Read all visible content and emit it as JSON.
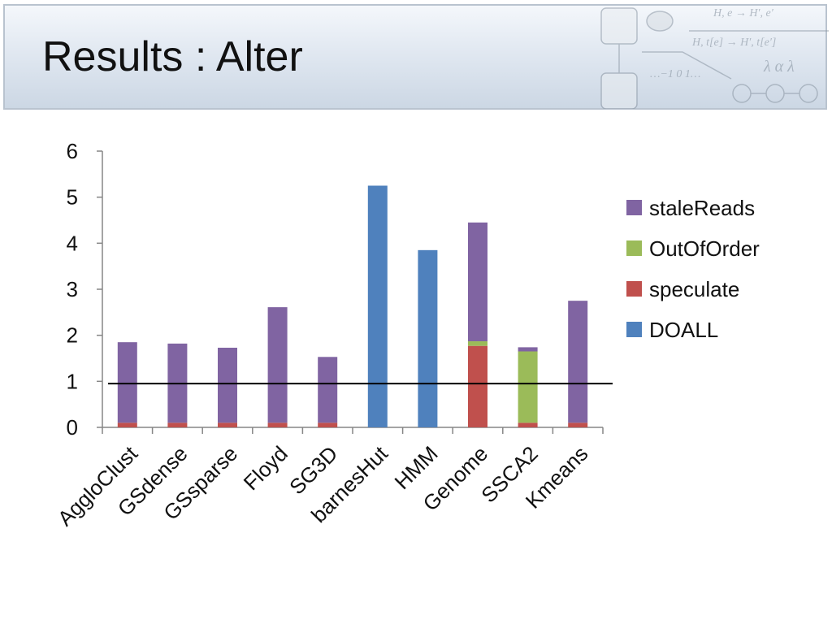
{
  "slide": {
    "title": "Results : Alter"
  },
  "decor": {
    "formula_top": "H, e  → H′, e′",
    "formula_bottom": "H, t[e]  → H′, t[e′]",
    "number_line": "…−1  0  1…",
    "symbols": "λ α λ"
  },
  "colors": {
    "staleReads": "#8064a2",
    "OutOfOrder": "#9bbb59",
    "speculate": "#c0504d",
    "DOALL": "#4f81bd",
    "axis": "#868686",
    "baseline": "#000000"
  },
  "chart_data": {
    "type": "bar",
    "stacked": true,
    "categories": [
      "AggloClust",
      "GSdense",
      "GSsparse",
      "Floyd",
      "SG3D",
      "barnesHut",
      "HMM",
      "Genome",
      "SSCA2",
      "Kmeans"
    ],
    "series": [
      {
        "name": "DOALL",
        "values": [
          0,
          0,
          0,
          0,
          0,
          5.25,
          3.85,
          0,
          0,
          0
        ]
      },
      {
        "name": "speculate",
        "values": [
          0.1,
          0.1,
          0.1,
          0.1,
          0.1,
          0,
          0,
          1.77,
          0.1,
          0.1
        ]
      },
      {
        "name": "OutOfOrder",
        "values": [
          0,
          0,
          0,
          0,
          0,
          0,
          0,
          0.1,
          1.55,
          0
        ]
      },
      {
        "name": "staleReads",
        "values": [
          1.75,
          1.72,
          1.63,
          2.51,
          1.43,
          0,
          0,
          2.58,
          0.09,
          2.65
        ]
      }
    ],
    "legend_order": [
      "staleReads",
      "OutOfOrder",
      "speculate",
      "DOALL"
    ],
    "legend_position": "right",
    "y_ticks": [
      "0",
      "1",
      "2",
      "3",
      "4",
      "5",
      "6"
    ],
    "ylim": [
      0,
      6
    ],
    "reference_line": 0.95,
    "grid": false
  }
}
